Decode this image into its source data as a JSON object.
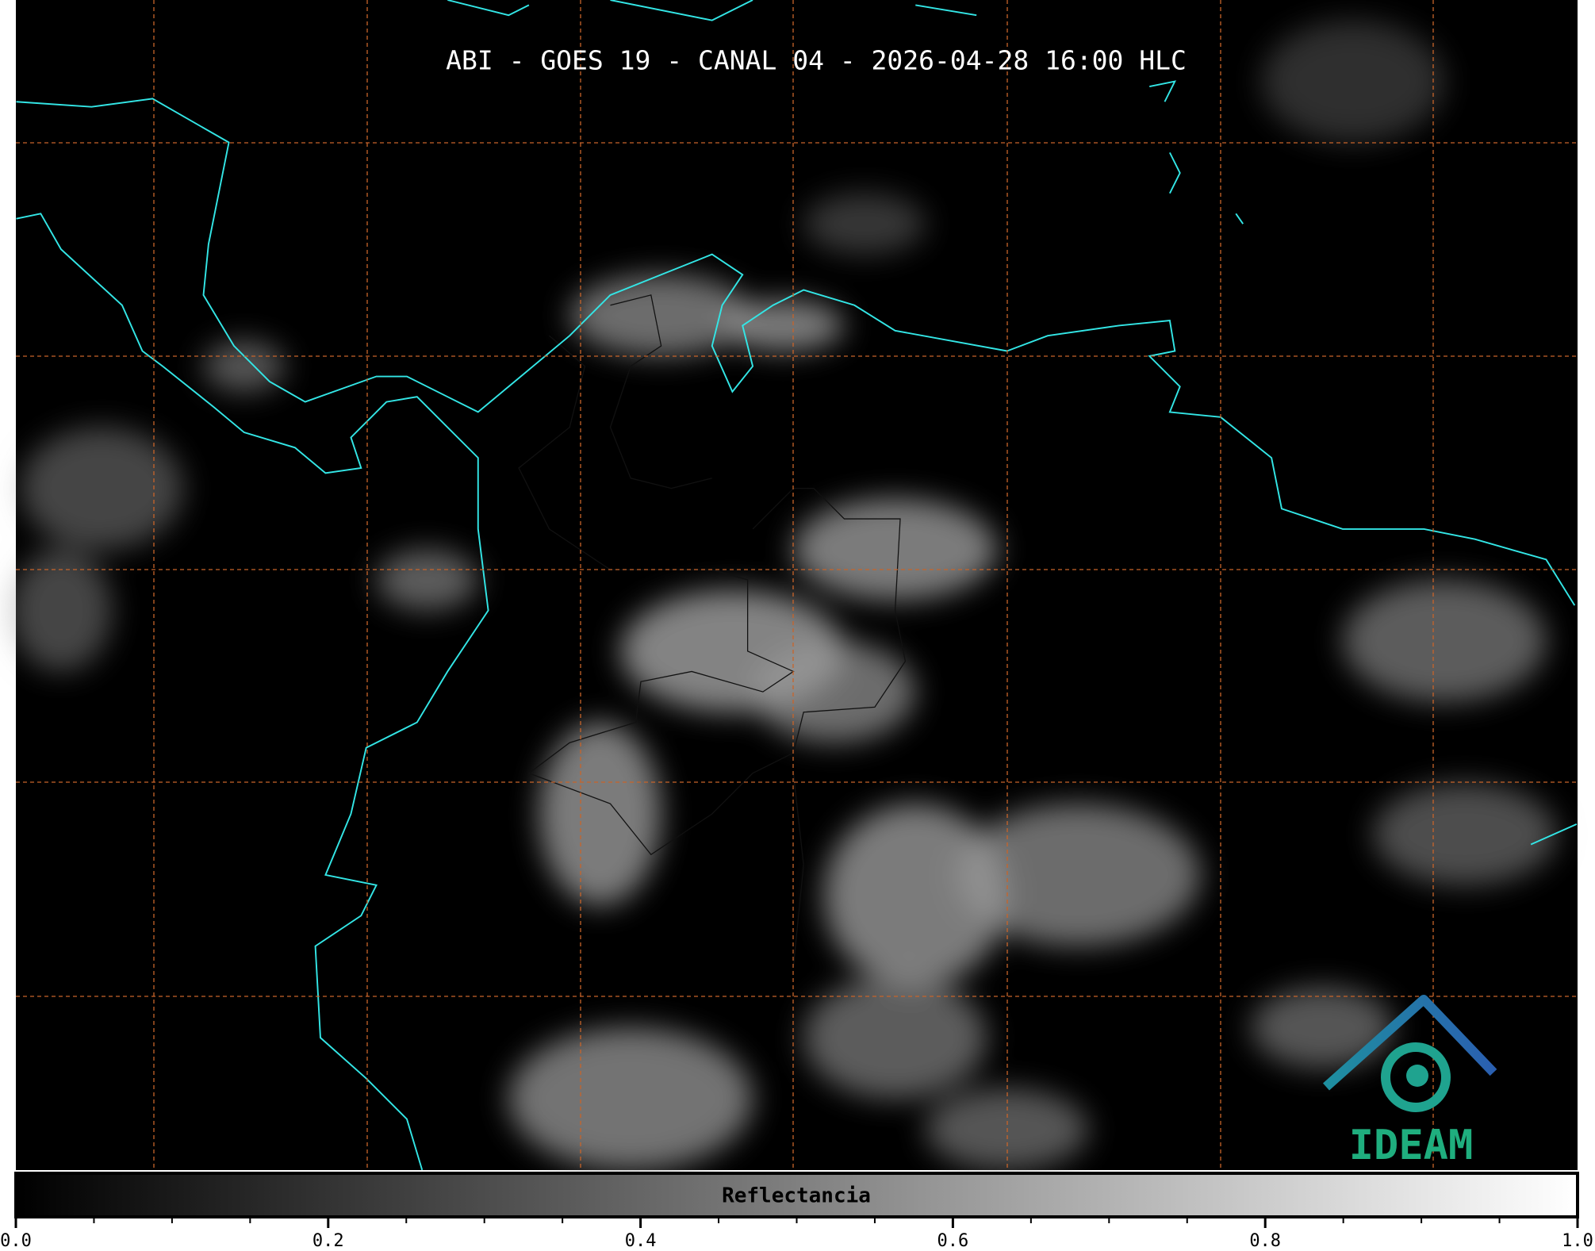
{
  "title": "ABI - GOES 19 - CANAL 04 - 2026-04-28 16:00 HLC",
  "colorbar": {
    "label": "Reflectancia",
    "clim": [
      0,
      1
    ],
    "colormap": [
      "#000000",
      "#ffffff"
    ],
    "ticks": [
      {
        "value": 0,
        "label": "0.0"
      },
      0.2,
      0.4,
      0.6,
      0.8,
      {
        "value": 1,
        "label": "1.0"
      }
    ],
    "minor_ticks": [
      0.05,
      0.1,
      0.15,
      0.25,
      0.3,
      0.35,
      0.45,
      0.5,
      0.55,
      0.65,
      0.7,
      0.75,
      0.85,
      0.9,
      0.95
    ]
  },
  "logo": {
    "text": "IDEAM"
  }
}
